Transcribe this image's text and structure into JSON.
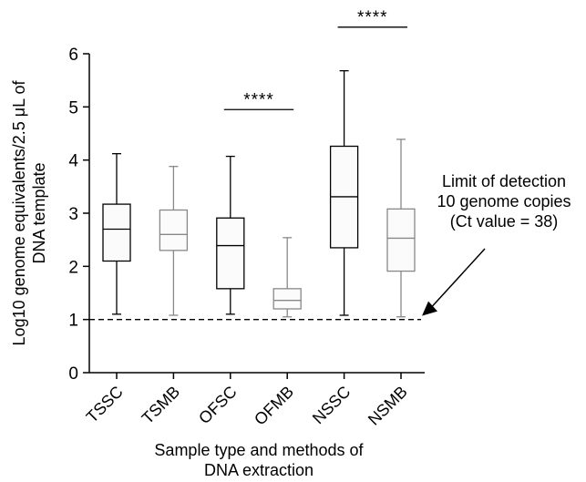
{
  "chart_data": {
    "type": "box",
    "title": "",
    "ylabel_lines": [
      "Log10 genome equivalents/2.5 μL of",
      "DNA template"
    ],
    "xlabel_lines": [
      "Sample type and methods of",
      "DNA extraction"
    ],
    "ylim": [
      0,
      6
    ],
    "yticks": [
      "0",
      "1",
      "2",
      "3",
      "4",
      "5",
      "6"
    ],
    "categories": [
      "TSSC",
      "TSMB",
      "OFSC",
      "OFMB",
      "NSSC",
      "NSMB"
    ],
    "colors": [
      "#000000",
      "#888888",
      "#000000",
      "#888888",
      "#000000",
      "#888888"
    ],
    "box_fill": "#fbfbfb",
    "boxes": [
      {
        "name": "TSSC",
        "min": 1.1,
        "q1": 2.1,
        "median": 2.7,
        "q3": 3.17,
        "max": 4.12
      },
      {
        "name": "TSMB",
        "min": 1.08,
        "q1": 2.3,
        "median": 2.6,
        "q3": 3.06,
        "max": 3.88
      },
      {
        "name": "OFSC",
        "min": 1.1,
        "q1": 1.58,
        "median": 2.39,
        "q3": 2.91,
        "max": 4.07
      },
      {
        "name": "OFMB",
        "min": 1.05,
        "q1": 1.2,
        "median": 1.36,
        "q3": 1.58,
        "max": 2.54
      },
      {
        "name": "NSSC",
        "min": 1.08,
        "q1": 2.35,
        "median": 3.31,
        "q3": 4.26,
        "max": 5.68
      },
      {
        "name": "NSMB",
        "min": 1.05,
        "q1": 1.91,
        "median": 2.53,
        "q3": 3.08,
        "max": 4.39
      }
    ],
    "reference_line": {
      "y": 1,
      "style": "dashed"
    },
    "significance": [
      {
        "label": "****",
        "from": "OFSC",
        "to": "OFMB",
        "y": 4.95
      },
      {
        "label": "****",
        "from": "NSSC",
        "to": "NSMB",
        "y": 6.5
      }
    ],
    "annotation": {
      "lines": [
        "Limit of detection",
        "10 genome copies",
        "(Ct value = 38)"
      ],
      "arrow_to": {
        "category_after": "NSMB",
        "y": 1.0
      }
    }
  }
}
